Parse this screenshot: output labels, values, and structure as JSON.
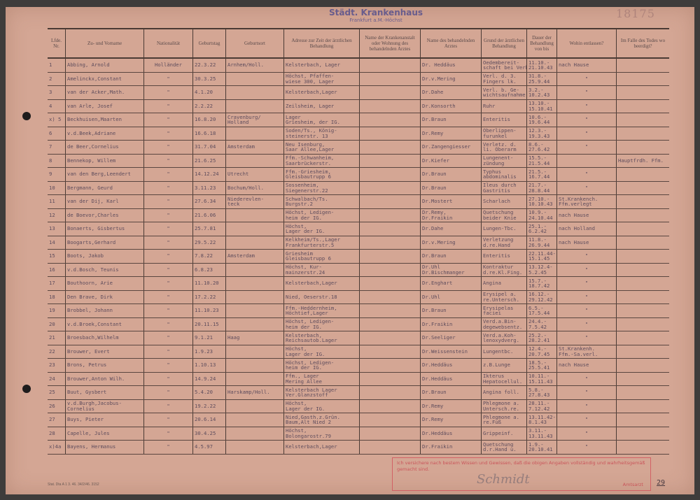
{
  "archive_number": "18175",
  "headers": [
    "Lfde. Nr.",
    "Zu- und Vorname",
    "Nationalität",
    "Geburtstag",
    "Geburtsort",
    "Adresse zur Zeit der ärztlichen Behandlung",
    "Name der Krankenanstalt oder Wohnung des behandelnden Arztes",
    "Name des behandelnden Arztes",
    "Grund der ärztlichen Behandlung",
    "Dauer der Behandlung von bis",
    "Wohin entlassen?",
    "Im Falle des Todes wo beerdigt?"
  ],
  "rows": [
    [
      "1",
      "Abbing, Arnold",
      "Holländer",
      "22.3.22",
      "Arnhem/Holl.",
      "Kelsterbach, Lager",
      "",
      "Dr. Heddäus",
      "Oedembereit-\nschaft bei Verb.",
      "11.10.-\n21.10.43",
      "nach Hause",
      ""
    ],
    [
      "2",
      "Amelinckx,Constant",
      "\"",
      "30.3.25",
      "",
      "Höchst, Pfaffen-\nwiese 300, Lager",
      "",
      "Dr.v.Mering",
      "Verl. d. 3.\nFingers lk.",
      "31.8.-\n25.9.44",
      "\"",
      ""
    ],
    [
      "3",
      "van der Acker,Math.",
      "\"",
      "4.1.20",
      "",
      "Kelsterbach,Lager",
      "",
      "Dr.Dahe",
      "Verl. b. Ge-\nwichtsaufnahme",
      "3.2.-\n10.2.43",
      "\"",
      ""
    ],
    [
      "4",
      "van Arle, Josef",
      "\"",
      "2.2.22",
      "",
      "Zeilsheim, Lager",
      "",
      "Dr.Konsorth",
      "Ruhr",
      "13.10.-\n15.10.41",
      "\"",
      ""
    ],
    [
      "x) 5",
      "Beckhuisen,Maarten",
      "\"",
      "16.8.20",
      "Cravenburg/\nHolland",
      "Lager\nGriesheim, der IG.",
      "",
      "Dr.Braun",
      "Enteritis",
      "10.6.-\n19.6.44",
      "\"",
      ""
    ],
    [
      "6",
      "v.d.Beek,Adriane",
      "\"",
      "16.6.18",
      "",
      "Soden/Ts., König-\nsteinerstr. 13",
      "",
      "Dr.Remy",
      "Oberlippen-\nfurunkel",
      "12.3.-\n19.3.43",
      "\"",
      ""
    ],
    [
      "7",
      "de Beer,Cornelius",
      "\"",
      "31.7.04",
      "Amsterdam",
      "Neu Isenburg,\nSaar Allee,Lager",
      "",
      "Dr.Zangengiesser",
      "Verletz. d.\nli. Oberarm",
      "8.6.-\n27.6.42",
      "\"",
      ""
    ],
    [
      "8",
      "Bennekop, Willem",
      "\"",
      "21.6.25",
      "",
      "Ffm.-Schwanheim,\nSaarbrückerstr.",
      "",
      "Dr.Kiefer",
      "Lungenent-\nzündung",
      "15.5.-\n21.5.44",
      "",
      "Hauptfrdh. Ffm."
    ],
    [
      "9",
      "van den Berg,Leendert",
      "\"",
      "14.12.24",
      "Utrecht",
      "Ffm.-Griesheim,\nGleisbautrupp 6",
      "",
      "Dr.Braun",
      "Typhus\nabdominalis",
      "21.5.-\n16.7.44",
      "\"",
      ""
    ],
    [
      "10",
      "Bergmann, Geurd",
      "\"",
      "3.11.23",
      "Bochum/Holl.",
      "Sossenheim,\nSiegenerstr.22",
      "",
      "Dr.Braun",
      "Ileus durch\nGastritis",
      "21.7.-\n28.8.44",
      "\"",
      ""
    ],
    [
      "11",
      "van der Dij, Karl",
      "\"",
      "27.6.34",
      "Niederevlen-\nteck",
      "Schwalbach/Ts.\nBurgstr.2",
      "",
      "Dr.Mostert",
      "Scharlach",
      "27.10.-\n10.10.43",
      "St.Krankench.\nFfm.verlegt",
      ""
    ],
    [
      "12",
      "de Boevor,Charles",
      "\"",
      "21.6.06",
      "",
      "Höchst, Ledigen-\nheim der IG.",
      "",
      "Dr.Remy,\nDr.Fraikin",
      "Quetschung\nbeider Knie",
      "10.9.-\n24.10.44",
      "nach Hause",
      ""
    ],
    [
      "13",
      "Bonaerts, Gisbertus",
      "\"",
      "25.7.81",
      "",
      "Höchst,\nLager der IG.",
      "",
      "Dr.Dahe",
      "Lungen-Tbc.",
      "25.1.-\n6.2.42",
      "nach Holland",
      ""
    ],
    [
      "14",
      "Boogarts,Gerhard",
      "\"",
      "29.5.22",
      "",
      "Kelkheim/Ts.,Lager\nFrankfurterstr.5",
      "",
      "Dr.v.Mering",
      "Verletzung\nd.re.Hand",
      "11.8.-\n26.9.44",
      "nach Hause",
      ""
    ],
    [
      "15",
      "Boots, Jakob",
      "\"",
      "7.8.22",
      "Amsterdam",
      "Griesheim\nGleisbautrupp 6",
      "",
      "Dr.Braun",
      "Enteritis",
      "22.11.44-\n15.1.45",
      "\"",
      ""
    ],
    [
      "16",
      "v.d.Bosch, Teunis",
      "\"",
      "6.8.23",
      "",
      "Höchst, Kur-\nmainzerstr.24",
      "",
      "Dr.Uhl\nDr.Bischmanger",
      "Kontraktur\nd.re.Kl.Fing.",
      "13.12.4-\n5.2.45",
      "\"",
      ""
    ],
    [
      "17",
      "Bouthoorn, Arie",
      "\"",
      "11.10.20",
      "",
      "Kelsterbach,Lager",
      "",
      "Dr.Enghart",
      "Angina",
      "15.7.-\n18.7.42",
      "\"",
      ""
    ],
    [
      "18",
      "Den Brave, Dirk",
      "\"",
      "17.2.22",
      "",
      "Nied, Oeserstr.18",
      "",
      "Dr.Uhl",
      "Erysipel a.\nre.Untersch.",
      "16.12.-\n29.12.42",
      "\"",
      ""
    ],
    [
      "19",
      "Brobbel, Johann",
      "\"",
      "11.10.23",
      "",
      "Ffm.-Heddernheim,\nHöchtief,Lager",
      "",
      "Dr.Braun",
      "Erysipelas\nfaciei",
      "6.5.-\n17.5.44",
      "\"",
      ""
    ],
    [
      "20",
      "v.d.Broek,Constant",
      "\"",
      "20.11.15",
      "",
      "Höchst, Ledigen-\nheim der IG.",
      "",
      "Dr.Fraikin",
      "Verd.a.Bin-\ndegewebsentz.",
      "24.4.-\n7.5.42",
      "\"",
      ""
    ],
    [
      "21",
      "Broesbach,Wilhelm",
      "\"",
      "9.1.21",
      "Haag",
      "Kelsterbach,\nReichsautob.Lager",
      "",
      "Dr.Seeliger",
      "Verd.a.Koh-\nlenoxydverg.",
      "25.2.-\n28.2.41",
      "\"",
      ""
    ],
    [
      "22",
      "Brouwer, Evert",
      "\"",
      "1.9.23",
      "",
      "Höchst,\nLager der IG.",
      "",
      "Dr.Weissenstein",
      "Lungentbc.",
      "12.4.-\n20.7.45",
      "St.Krankenh.\nFfm.-Sa.verl.",
      ""
    ],
    [
      "23",
      "Brons, Petrus",
      "\"",
      "1.10.13",
      "",
      "Höchst, Ledigen-\nheim der IG.",
      "",
      "Dr.Heddäus",
      "z.B.Lunge",
      "18.5.-\n25.5.41",
      "nach Hause",
      ""
    ],
    [
      "24",
      "Brouwer,Anton Wilh.",
      "\"",
      "14.9.24",
      "",
      "Ffm., Lager\nMering Allee",
      "",
      "Dr.Heddäus",
      "Ikterus\nHepatocellul.",
      "10.11.-\n15.11.43",
      "\"",
      ""
    ],
    [
      "25",
      "Buut, Gysbert",
      "\"",
      "5.4.20",
      "Harskamp/Holl.",
      "Kelsterbach Lager\nVer.Glanzstoff",
      "",
      "Dr.Braun",
      "Angina foll.",
      "5.8.-\n27.8.43",
      "\"",
      ""
    ],
    [
      "26",
      "v.d.Burgh,Jacobus-\nCornelius",
      "\"",
      "19.2.22",
      "",
      "Höchst,\nLager der IG.",
      "",
      "Dr.Remy",
      "Phlegmone a.\nUntersch.re.",
      "28.11.-\n7.12.42",
      "\"",
      ""
    ],
    [
      "27",
      "Buys, Pieter",
      "\"",
      "20.6.14",
      "",
      "Nied,Gasth.z.Grün.\nBaum,Alt Nied 2",
      "",
      "Dr.Remy",
      "Phlegmone a.\nre.Fuß",
      "13.11.42-\n8.1.43",
      "\"",
      ""
    ],
    [
      "28",
      "Capelle, Jules",
      "\"",
      "30.4.25",
      "",
      "Höchst,\nBolongarostr.79",
      "",
      "Dr.Heddäus",
      "Grippeinf.",
      "3.11.-\n13.11.43",
      "\"",
      ""
    ],
    [
      "x)4a",
      "Bayens, Hermanus",
      "\"",
      "4.5.97",
      "",
      "Kelsterbach,Lager",
      "",
      "Dr.Fraikin",
      "Quetschung\nd.r.Hand u.",
      "1.9.-\n20.10.41",
      "\"",
      ""
    ]
  ],
  "hospital_stamp": {
    "line1": "Städt. Krankenhaus",
    "line2": "Frankfurt a.M.-Höchst"
  },
  "oath_stamp": {
    "text": "Ich versichere nach bestem Wissen und Gewissen, daß die obigen Angaben vollständig und wahrheitsgemäß gemacht sind.",
    "signature": "Schmidt",
    "role": "Amtsarzt"
  },
  "footer_code": "Stat. Dta A 1 3. 46. 34/2/46. 3152",
  "page_number": "29",
  "colors": {
    "paper": "#d4a694",
    "ink": "#5e4c5c",
    "stamp_blue": "#46468c",
    "stamp_red": "#d2505a"
  }
}
